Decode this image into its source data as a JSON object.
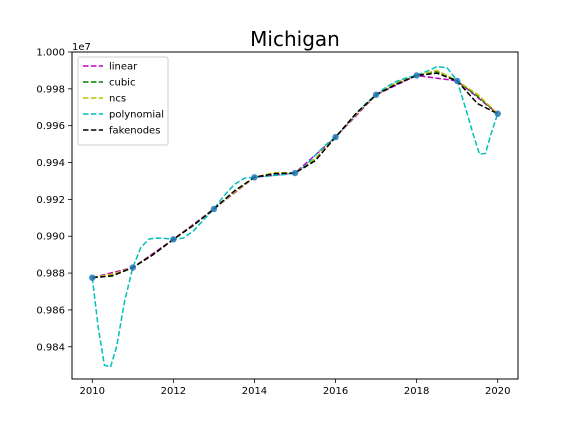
{
  "chart_data": {
    "type": "line",
    "title": "Michigan",
    "xlabel": "",
    "ylabel": "",
    "y_multiplier_label": "1e7",
    "xlim": [
      2009.5,
      2020.5
    ],
    "ylim": [
      0.98225,
      1.0
    ],
    "x_ticks": [
      2010,
      2012,
      2014,
      2016,
      2018,
      2020
    ],
    "y_ticks": [
      0.984,
      0.986,
      0.988,
      0.99,
      0.992,
      0.994,
      0.996,
      0.998,
      1.0
    ],
    "y_tick_labels": [
      "0.984",
      "0.986",
      "0.988",
      "0.990",
      "0.992",
      "0.994",
      "0.996",
      "0.998",
      "1.000"
    ],
    "grid": false,
    "legend_placement": "top-left",
    "data_points": {
      "x": [
        2010,
        2011,
        2012,
        2013,
        2014,
        2015,
        2016,
        2017,
        2018,
        2019,
        2020
      ],
      "y": [
        0.98775,
        0.9883,
        0.98983,
        0.99148,
        0.9932,
        0.99343,
        0.99538,
        0.99768,
        0.99873,
        0.99843,
        0.99665
      ],
      "color": "#1f77b4"
    },
    "series": [
      {
        "name": "linear",
        "color": "#c000c0",
        "x": [
          2010,
          2011,
          2012,
          2013,
          2014,
          2015,
          2016,
          2017,
          2018,
          2019,
          2020
        ],
        "y": [
          0.98775,
          0.9883,
          0.98983,
          0.99148,
          0.9932,
          0.99343,
          0.99538,
          0.99768,
          0.99873,
          0.99843,
          0.99665
        ]
      },
      {
        "name": "cubic",
        "color": "#008000",
        "x": [
          2010,
          2010.5,
          2011,
          2011.5,
          2012,
          2012.5,
          2013,
          2013.5,
          2014,
          2014.5,
          2015,
          2015.5,
          2016,
          2016.5,
          2017,
          2017.5,
          2018,
          2018.5,
          2019,
          2019.5,
          2020
        ],
        "y": [
          0.98775,
          0.9879,
          0.9883,
          0.989,
          0.98983,
          0.9906,
          0.99148,
          0.9924,
          0.9932,
          0.9934,
          0.99343,
          0.9942,
          0.99538,
          0.9966,
          0.99768,
          0.9983,
          0.99873,
          0.99895,
          0.99843,
          0.9976,
          0.99665
        ]
      },
      {
        "name": "ncs",
        "color": "#bfbf00",
        "x": [
          2010,
          2010.5,
          2011,
          2011.5,
          2012,
          2012.5,
          2013,
          2013.5,
          2014,
          2014.5,
          2015,
          2015.5,
          2016,
          2016.5,
          2017,
          2017.5,
          2018,
          2018.5,
          2019,
          2019.5,
          2020
        ],
        "y": [
          0.98775,
          0.98795,
          0.9883,
          0.989,
          0.98983,
          0.99062,
          0.99148,
          0.99238,
          0.9932,
          0.99345,
          0.99343,
          0.9942,
          0.99538,
          0.9966,
          0.99768,
          0.99835,
          0.99873,
          0.999,
          0.99843,
          0.9977,
          0.99665
        ]
      },
      {
        "name": "polynomial",
        "color": "#00bfbf",
        "x": [
          2010,
          2010.15,
          2010.3,
          2010.45,
          2010.6,
          2010.8,
          2011,
          2011.2,
          2011.4,
          2011.6,
          2011.8,
          2012,
          2012.25,
          2012.5,
          2012.75,
          2013,
          2013.25,
          2013.5,
          2013.75,
          2014,
          2014.25,
          2014.5,
          2014.75,
          2015,
          2015.25,
          2015.5,
          2015.75,
          2016,
          2016.25,
          2016.5,
          2016.75,
          2017,
          2017.25,
          2017.5,
          2017.75,
          2018,
          2018.25,
          2018.5,
          2018.75,
          2019,
          2019.2,
          2019.4,
          2019.55,
          2019.7,
          2019.8,
          2019.9,
          2020
        ],
        "y": [
          0.98775,
          0.985,
          0.983,
          0.9829,
          0.984,
          0.9865,
          0.9883,
          0.9894,
          0.98985,
          0.9899,
          0.98988,
          0.98983,
          0.9899,
          0.9903,
          0.9909,
          0.99148,
          0.9922,
          0.9928,
          0.99315,
          0.9932,
          0.99325,
          0.9933,
          0.99335,
          0.99343,
          0.9938,
          0.9944,
          0.99495,
          0.99538,
          0.996,
          0.99665,
          0.9972,
          0.99768,
          0.9981,
          0.9984,
          0.9986,
          0.99873,
          0.99895,
          0.9992,
          0.99915,
          0.99843,
          0.997,
          0.9955,
          0.99445,
          0.9945,
          0.9953,
          0.996,
          0.99665
        ]
      },
      {
        "name": "fakenodes",
        "color": "#000000",
        "x": [
          2010,
          2010.5,
          2011,
          2011.5,
          2012,
          2012.5,
          2013,
          2013.5,
          2014,
          2014.5,
          2015,
          2015.5,
          2016,
          2016.5,
          2017,
          2017.5,
          2018,
          2018.5,
          2019,
          2019.5,
          2020
        ],
        "y": [
          0.98775,
          0.98785,
          0.9883,
          0.989,
          0.98983,
          0.9906,
          0.99148,
          0.99245,
          0.9932,
          0.9934,
          0.99343,
          0.9941,
          0.99538,
          0.99665,
          0.99768,
          0.99825,
          0.99873,
          0.99885,
          0.99843,
          0.9972,
          0.99665
        ]
      }
    ]
  }
}
